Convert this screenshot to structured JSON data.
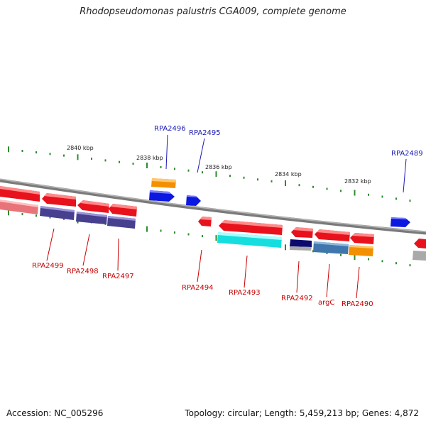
{
  "title": "Rhodopseudomonas palustris CGA009, complete genome",
  "footer": {
    "accession": "Accession: NC_005296",
    "summary": "Topology: circular; Length: 5,459,213 bp; Genes: 4,872"
  },
  "ruler_labels": [
    {
      "id": "kbp-2840",
      "text": "2840 kbp"
    },
    {
      "id": "kbp-2838",
      "text": "2838 kbp"
    },
    {
      "id": "kbp-2836",
      "text": "2836 kbp"
    },
    {
      "id": "kbp-2834",
      "text": "2834 kbp"
    },
    {
      "id": "kbp-2832",
      "text": "2832 kbp"
    }
  ],
  "gene_labels_forward": [
    {
      "id": "RPA2496",
      "text": "RPA2496"
    },
    {
      "id": "RPA2495",
      "text": "RPA2495"
    },
    {
      "id": "RPA2489",
      "text": "RPA2489"
    }
  ],
  "gene_labels_reverse": [
    {
      "id": "RPA2499",
      "text": "RPA2499"
    },
    {
      "id": "RPA2498",
      "text": "RPA2498"
    },
    {
      "id": "RPA2497",
      "text": "RPA2497"
    },
    {
      "id": "RPA2494",
      "text": "RPA2494"
    },
    {
      "id": "RPA2493",
      "text": "RPA2493"
    },
    {
      "id": "RPA2492",
      "text": "RPA2492"
    },
    {
      "id": "argC",
      "text": "argC"
    },
    {
      "id": "RPA2490",
      "text": "RPA2490"
    }
  ],
  "colors": {
    "backbone": "#8c8c8c",
    "tick": "#2e8b2e",
    "forward_label": "#1a1ab4",
    "reverse_label": "#c80000",
    "gene_red": "#e8121c",
    "gene_orange": "#f39000",
    "gene_blue": "#0c18e0",
    "gene_purple": "#47408e",
    "gene_cyan": "#16dede",
    "gene_steel": "#3f76ad",
    "gene_navy": "#0b0b6e",
    "gene_salmon": "#e8747a",
    "gene_grey": "#a9a9a9"
  }
}
